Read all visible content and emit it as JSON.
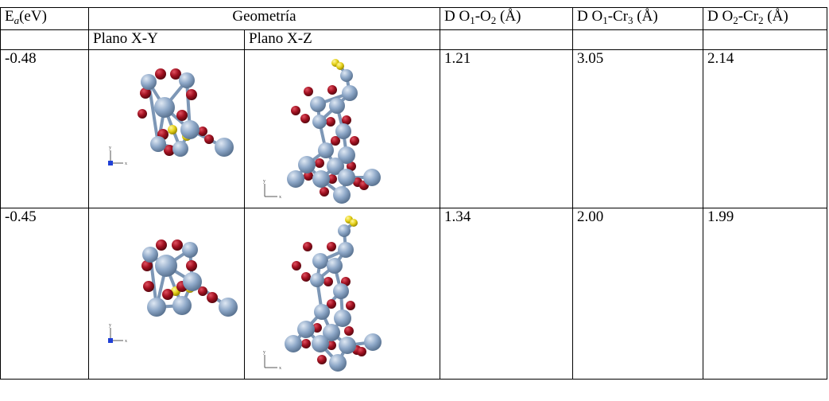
{
  "header": {
    "energy_prefix": "E",
    "energy_sub": "a",
    "energy_unit": "(eV)",
    "geometry": "Geometría",
    "d1": {
      "pre": "D O",
      "s1": "1",
      "mid": "-O",
      "s2": "2",
      "post": " (Å)"
    },
    "d2": {
      "pre": "D O",
      "s1": "1",
      "mid": "-Cr",
      "s2": "3",
      "post": " (Å)"
    },
    "d3": {
      "pre": "D O",
      "s1": "2",
      "mid": "-Cr",
      "s2": "2",
      "post": " (Å)"
    }
  },
  "subheader": {
    "xy": "Plano X-Y",
    "xz": "Plano X-Z"
  },
  "rows": [
    {
      "energy": "-0.48",
      "d1": "1.21",
      "d2": "3.05",
      "d3": "2.14"
    },
    {
      "energy": "-0.45",
      "d1": "1.34",
      "d2": "2.00",
      "d3": "1.99"
    }
  ],
  "colors": {
    "chromium": "#8ea8c8",
    "oxygen": "#a01020",
    "sulfur": "#e6d21a",
    "axis_blue": "#1f3fd6"
  }
}
